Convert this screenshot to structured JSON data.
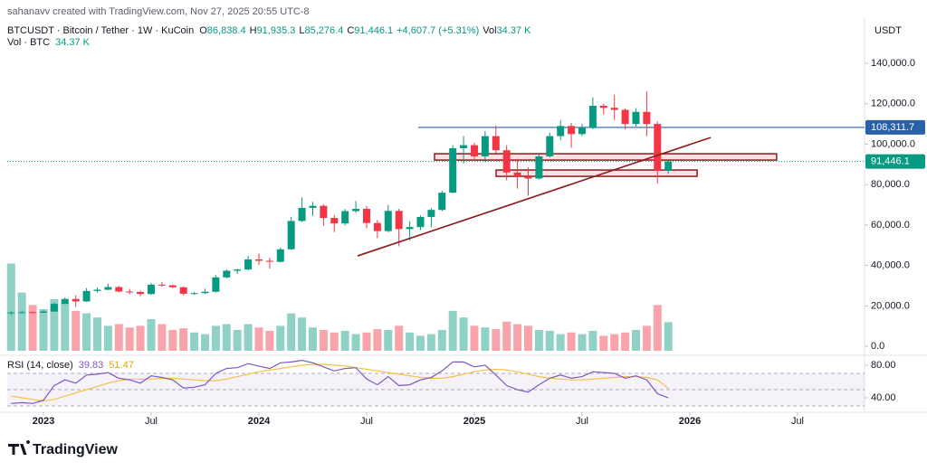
{
  "chart_data": {
    "type": "candlestick",
    "watermark": "sahanavv created with TradingView.com, Nov 27, 2025 20:55 UTC-8",
    "symbol": "BTCUSDT · Bitcoin / Tether · 1W · KuCoin",
    "ohlc_labels": [
      {
        "key": "O",
        "value": "86,838.4"
      },
      {
        "key": "H",
        "value": "91,935.3"
      },
      {
        "key": "L",
        "value": "85,276.4"
      },
      {
        "key": "C",
        "value": "91,446.1"
      }
    ],
    "change": "+4,607.7 (+5.31%)",
    "vol_key": "Vol",
    "vol_value": "34.37 K",
    "volume_title": "Vol · BTC",
    "volume_last": "34.37 K",
    "currency": "USDT",
    "brand": "TradingView",
    "up_color": "#089981",
    "down_color": "#f23645",
    "xlim": [
      2022.832,
      2026.811
    ],
    "xticks": [
      2023,
      {
        "value": 2023.5,
        "label": "Jul"
      },
      2024,
      {
        "value": 2024.5,
        "label": "Jul"
      },
      2025,
      {
        "value": 2025.5,
        "label": "Jul"
      },
      2026,
      {
        "value": 2026.5,
        "label": "Jul"
      }
    ],
    "ylim": [
      -4000,
      162400
    ],
    "yticks": [
      {
        "value": 0,
        "label": "0.0"
      },
      {
        "value": 20000,
        "label": "20,000.0"
      },
      {
        "value": 40000,
        "label": "40,000.0"
      },
      {
        "value": 60000,
        "label": "60,000.0"
      },
      {
        "value": 80000,
        "label": "80,000.0"
      },
      {
        "value": 100000,
        "label": "100,000.0"
      },
      {
        "value": 120000,
        "label": "120,000.0"
      },
      {
        "value": 140000,
        "label": "140,000.0"
      }
    ],
    "x": [
      2022.85,
      2022.9,
      2022.95,
      2023,
      2023.05,
      2023.1,
      2023.15,
      2023.2,
      2023.25,
      2023.3,
      2023.35,
      2023.4,
      2023.45,
      2023.5,
      2023.55,
      2023.6,
      2023.65,
      2023.7,
      2023.75,
      2023.8,
      2023.85,
      2023.9,
      2023.95,
      2024,
      2024.05,
      2024.1,
      2024.15,
      2024.2,
      2024.25,
      2024.3,
      2024.35,
      2024.4,
      2024.45,
      2024.5,
      2024.55,
      2024.6,
      2024.65,
      2024.7,
      2024.75,
      2024.8,
      2024.85,
      2024.9,
      2024.95,
      2025,
      2025.05,
      2025.1,
      2025.15,
      2025.2,
      2025.25,
      2025.3,
      2025.35,
      2025.4,
      2025.45,
      2025.5,
      2025.55,
      2025.6,
      2025.65,
      2025.7,
      2025.75,
      2025.8,
      2025.85,
      2025.9
    ],
    "open": [
      16400,
      16800,
      16900,
      16600,
      17200,
      21000,
      23400,
      22200,
      27400,
      28000,
      29300,
      27100,
      26900,
      25900,
      30500,
      30200,
      29200,
      26000,
      26300,
      27000,
      34100,
      37400,
      38000,
      43000,
      42300,
      41800,
      48000,
      62000,
      68500,
      69500,
      63500,
      60800,
      66900,
      68000,
      61000,
      57000,
      67000,
      58000,
      59000,
      64000,
      67500,
      76000,
      98000,
      99500,
      94000,
      104000,
      97000,
      86000,
      84000,
      83000,
      94000,
      104000,
      109000,
      105000,
      108000,
      119000,
      118000,
      117000,
      110000,
      116000,
      110000,
      86838.4
    ],
    "high": [
      17300,
      17400,
      17100,
      17900,
      21500,
      24200,
      25200,
      28800,
      29100,
      31000,
      29900,
      28400,
      27500,
      31400,
      31800,
      30400,
      29600,
      26800,
      28500,
      35200,
      38000,
      38500,
      44700,
      45900,
      43800,
      48900,
      64000,
      73700,
      71500,
      70300,
      65000,
      68000,
      71900,
      69500,
      62500,
      69900,
      68000,
      61800,
      64800,
      68400,
      77000,
      99500,
      104000,
      100800,
      106500,
      109300,
      99500,
      92800,
      88500,
      95700,
      105800,
      111900,
      110500,
      110000,
      123200,
      120000,
      124500,
      117800,
      117900,
      126200,
      111200,
      91935.3
    ],
    "low": [
      15500,
      16300,
      16300,
      16500,
      17100,
      20900,
      19600,
      21900,
      26600,
      27800,
      26800,
      25800,
      24800,
      25400,
      29500,
      28800,
      25200,
      25400,
      25800,
      26600,
      33600,
      35800,
      37500,
      40200,
      38500,
      41500,
      47600,
      61500,
      64500,
      59600,
      56500,
      59800,
      66000,
      58400,
      53500,
      56500,
      49500,
      52500,
      57500,
      58900,
      66800,
      75800,
      90500,
      92000,
      91200,
      95500,
      82100,
      78000,
      74500,
      82500,
      93500,
      102000,
      98200,
      104000,
      107500,
      114700,
      112000,
      107300,
      108800,
      104000,
      80500,
      85276.4
    ],
    "close": [
      16800,
      16900,
      16600,
      17200,
      21000,
      23400,
      22200,
      27400,
      28000,
      29300,
      27100,
      26900,
      25900,
      30500,
      30200,
      29200,
      26000,
      26300,
      27000,
      34100,
      37400,
      38000,
      43000,
      42300,
      41800,
      48000,
      62000,
      68500,
      69500,
      63500,
      60800,
      66900,
      68000,
      61000,
      57000,
      67000,
      58000,
      59000,
      64000,
      67500,
      76000,
      98000,
      99500,
      94000,
      104000,
      97000,
      86000,
      84000,
      83000,
      94000,
      104000,
      109000,
      105000,
      108000,
      119000,
      118000,
      117000,
      110000,
      116000,
      110000,
      86838.4,
      91446.1
    ],
    "volume": {
      "lim": [
        0,
        150000
      ],
      "values": [
        105000,
        70000,
        55000,
        50000,
        62000,
        58000,
        48000,
        45000,
        40000,
        30000,
        32000,
        28000,
        30000,
        38000,
        32000,
        25000,
        27000,
        22000,
        20000,
        30000,
        32000,
        25000,
        32000,
        28000,
        24000,
        30000,
        45000,
        40000,
        28000,
        25000,
        22000,
        24000,
        20000,
        22000,
        26000,
        25000,
        30000,
        22000,
        18000,
        20000,
        25000,
        48000,
        40000,
        30000,
        28000,
        26000,
        35000,
        32000,
        30000,
        25000,
        24000,
        20000,
        22000,
        20000,
        24000,
        18000,
        20000,
        22000,
        25000,
        30000,
        55000,
        34370
      ]
    },
    "hline": {
      "value": 108311.7,
      "label": "108,311.7",
      "x_start": 2024.739,
      "color": "#2962a8"
    },
    "last_price": {
      "value": 91446.1,
      "label": "91,446.1",
      "color": "#089981"
    },
    "zones": [
      {
        "x": [
          2024.815,
          2026.403
        ],
        "y": [
          92140,
          95270
        ]
      },
      {
        "x": [
          2025.101,
          2026.034
        ],
        "y": [
          84090,
          87220
        ]
      }
    ],
    "trendline": {
      "x": [
        2024.458,
        2026.097
      ],
      "y": [
        44730,
        103320
      ]
    },
    "drawing_color": "#8b1a1a",
    "rsi": {
      "title": "RSI (14, close)",
      "last": "39.83",
      "ma_last": "51.47",
      "color": "#7e57c2",
      "ma_color": "#f5c242",
      "ylim": [
        23.3,
        90
      ],
      "yticks": [
        {
          "value": 80,
          "label": "80.00"
        },
        {
          "value": 40,
          "label": "40.00"
        }
      ],
      "levels": [
        70,
        50,
        30
      ],
      "values": [
        33,
        34,
        33,
        37,
        55,
        62,
        58,
        68,
        69,
        71,
        64,
        62,
        58,
        67,
        65,
        62,
        52,
        53,
        56,
        70,
        76,
        77,
        82,
        79,
        76,
        83,
        84,
        86,
        83,
        78,
        73,
        76,
        77,
        63,
        56,
        66,
        55,
        56,
        62,
        65,
        73,
        84,
        84,
        78,
        80,
        68,
        55,
        50,
        47,
        56,
        64,
        68,
        64,
        66,
        72,
        71,
        70,
        64,
        67,
        62,
        45,
        39.83
      ],
      "ma": [
        42,
        40,
        38,
        36,
        38,
        42,
        46,
        50,
        54,
        58,
        61,
        63,
        63,
        63,
        64,
        64,
        63,
        62,
        61,
        61,
        63,
        66,
        69,
        72,
        74,
        76,
        78,
        80,
        81,
        81,
        80,
        79,
        77,
        75,
        73,
        71,
        69,
        67,
        65,
        64,
        64,
        66,
        69,
        72,
        74,
        75,
        74,
        72,
        69,
        66,
        64,
        63,
        62,
        62,
        63,
        64,
        65,
        66,
        66,
        65,
        62,
        51.47
      ]
    }
  }
}
